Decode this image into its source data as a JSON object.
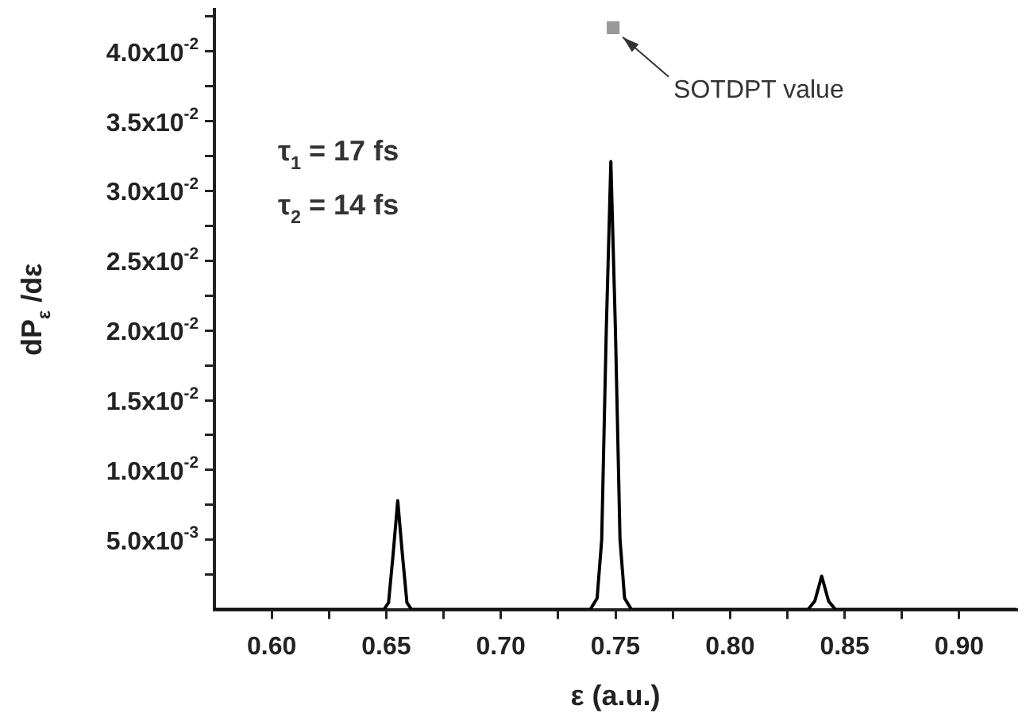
{
  "chart_data": {
    "type": "line",
    "xlabel": "ε (a.u.)",
    "ylabel": "dP$_{ε}$ /dε",
    "xlim": [
      0.575,
      0.925
    ],
    "xticks": [
      {
        "value": 0.6,
        "label": "0.60"
      },
      {
        "value": 0.625,
        "label": null
      },
      {
        "value": 0.65,
        "label": "0.65"
      },
      {
        "value": 0.675,
        "label": null
      },
      {
        "value": 0.7,
        "label": "0.70"
      },
      {
        "value": 0.725,
        "label": null
      },
      {
        "value": 0.75,
        "label": "0.75"
      },
      {
        "value": 0.775,
        "label": null
      },
      {
        "value": 0.8,
        "label": "0.80"
      },
      {
        "value": 0.825,
        "label": null
      },
      {
        "value": 0.85,
        "label": "0.85"
      },
      {
        "value": 0.875,
        "label": null
      },
      {
        "value": 0.9,
        "label": "0.90"
      }
    ],
    "ylim": [
      0,
      0.043
    ],
    "yticks": [
      {
        "value": 0.0025,
        "label": null
      },
      {
        "value": 0.005,
        "label": "5.0x10$^{-3}$"
      },
      {
        "value": 0.0075,
        "label": null
      },
      {
        "value": 0.01,
        "label": "1.0x10$^{-2}$"
      },
      {
        "value": 0.0125,
        "label": null
      },
      {
        "value": 0.015,
        "label": "1.5x10$^{-2}$"
      },
      {
        "value": 0.0175,
        "label": null
      },
      {
        "value": 0.02,
        "label": "2.0x10$^{-2}$"
      },
      {
        "value": 0.0225,
        "label": null
      },
      {
        "value": 0.025,
        "label": "2.5x10$^{-2}$"
      },
      {
        "value": 0.0275,
        "label": null
      },
      {
        "value": 0.03,
        "label": "3.0x10$^{-2}$"
      },
      {
        "value": 0.0325,
        "label": null
      },
      {
        "value": 0.035,
        "label": "3.5x10$^{-2}$"
      },
      {
        "value": 0.0375,
        "label": null
      },
      {
        "value": 0.04,
        "label": "4.0x10$^{-2}$"
      },
      {
        "value": 0.0425,
        "label": null
      }
    ],
    "grid": false,
    "legend": false,
    "series": [
      {
        "color": "#000000",
        "marker": "none",
        "x": [
          0.575,
          0.649,
          0.651,
          0.653,
          0.655,
          0.657,
          0.659,
          0.661,
          0.739,
          0.742,
          0.744,
          0.746,
          0.748,
          0.75,
          0.752,
          0.754,
          0.757,
          0.834,
          0.837,
          0.84,
          0.843,
          0.846,
          0.925
        ],
        "values": [
          0,
          0,
          0.0005,
          0.004,
          0.0078,
          0.004,
          0.0005,
          0,
          0,
          0.0008,
          0.005,
          0.02,
          0.0321,
          0.02,
          0.005,
          0.0008,
          0,
          0,
          0.0006,
          0.0024,
          0.0006,
          0,
          0
        ]
      },
      {
        "type": "scatter",
        "color": "#999999",
        "marker": "square",
        "x": [
          0.749
        ],
        "values": [
          0.0417
        ]
      }
    ],
    "annotations": [
      {
        "text": "SOTDPT value",
        "x": 0.749,
        "y": 0.0417
      },
      "τ$_{1}$ = 17 fs",
      "τ$_{2}$ = 14 fs"
    ]
  }
}
